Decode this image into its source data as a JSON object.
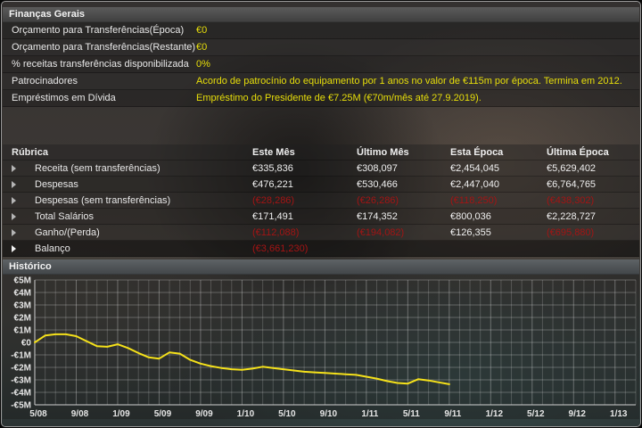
{
  "colors": {
    "accent_yellow": "#e8df0a",
    "negative_red": "#a31414",
    "text": "#e9e9e9",
    "chart_line": "#f5e11a"
  },
  "general": {
    "title": "Finanças Gerais",
    "rows": [
      {
        "label": "Orçamento para Transferências(Época)",
        "value": "€0"
      },
      {
        "label": "Orçamento para Transferências(Restante)",
        "value": "€0"
      },
      {
        "label": "% receitas transferências disponibilizada",
        "value": "0%"
      },
      {
        "label": "Patrocinadores",
        "value": "Acordo de patrocínio do equipamento por 1 anos no valor de €115m por época. Termina em 2012."
      },
      {
        "label": "Empréstimos em Dívida",
        "value": "Empréstimo do Presidente de €7.25M (€70m/mês até 27.9.2019)."
      }
    ]
  },
  "table": {
    "columns": [
      "Rúbrica",
      "Este Mês",
      "Último Mês",
      "Esta Época",
      "Última Época"
    ],
    "rows": [
      {
        "label": "Receita (sem transferências)",
        "values": [
          "€335,836",
          "€308,097",
          "€2,454,045",
          "€5,629,402"
        ],
        "highlight": false
      },
      {
        "label": "Despesas",
        "values": [
          "€476,221",
          "€530,466",
          "€2,447,040",
          "€6,764,765"
        ],
        "highlight": false
      },
      {
        "label": "Despesas (sem transferências)",
        "values": [
          "(€28,286)",
          "(€26,286)",
          "(€118,250)",
          "(€438,302)"
        ],
        "highlight": false
      },
      {
        "label": "Total Salários",
        "values": [
          "€171,491",
          "€174,352",
          "€800,036",
          "€2,228,727"
        ],
        "highlight": false
      },
      {
        "label": "Ganho/(Perda)",
        "values": [
          "(€112,088)",
          "(€194,082)",
          "€126,355",
          "(€695,880)"
        ],
        "highlight": false
      },
      {
        "label": "Balanço",
        "values": [
          "(€3,661,230)",
          "",
          "",
          ""
        ],
        "highlight": true
      }
    ]
  },
  "history": {
    "title": "Histórico"
  },
  "chart_data": {
    "type": "line",
    "title": "Histórico",
    "ylabel_ticks": [
      "€5M",
      "€4M",
      "€3M",
      "€2M",
      "€1M",
      "€0",
      "-€1M",
      "-€2M",
      "-€3M",
      "-€4M",
      "-€5M"
    ],
    "ylim_millions": [
      -5,
      5
    ],
    "x_tick_labels": [
      "5/08",
      "9/08",
      "1/09",
      "5/09",
      "9/09",
      "1/10",
      "5/10",
      "9/10",
      "1/11",
      "5/11",
      "9/11",
      "1/12",
      "5/12",
      "9/12",
      "1/13"
    ],
    "x_tick_interval_months": 4,
    "grid_total_months": 58,
    "grid": true,
    "legend": "none",
    "series": [
      {
        "name": "Balanço",
        "months": [
          "5/08",
          "6/08",
          "7/08",
          "8/08",
          "9/08",
          "10/08",
          "11/08",
          "12/08",
          "1/09",
          "2/09",
          "3/09",
          "4/09",
          "5/09",
          "6/09",
          "7/09",
          "8/09",
          "9/09",
          "10/09",
          "11/09",
          "12/09",
          "1/10",
          "2/10",
          "3/10",
          "4/10",
          "5/10",
          "6/10",
          "7/10",
          "8/10",
          "9/10",
          "10/10",
          "11/10",
          "12/10",
          "1/11",
          "2/11",
          "3/11",
          "4/11",
          "5/11",
          "6/11",
          "7/11",
          "8/11",
          "9/11"
        ],
        "values_millions": [
          0.0,
          0.55,
          0.65,
          0.65,
          0.5,
          0.1,
          -0.3,
          -0.35,
          -0.15,
          -0.45,
          -0.85,
          -1.2,
          -1.3,
          -0.8,
          -0.9,
          -1.4,
          -1.7,
          -1.9,
          -2.05,
          -2.15,
          -2.2,
          -2.1,
          -1.95,
          -2.05,
          -2.15,
          -2.25,
          -2.35,
          -2.4,
          -2.45,
          -2.5,
          -2.55,
          -2.6,
          -2.75,
          -2.9,
          -3.1,
          -3.25,
          -3.3,
          -2.95,
          -3.05,
          -3.2,
          -3.35
        ]
      }
    ]
  }
}
